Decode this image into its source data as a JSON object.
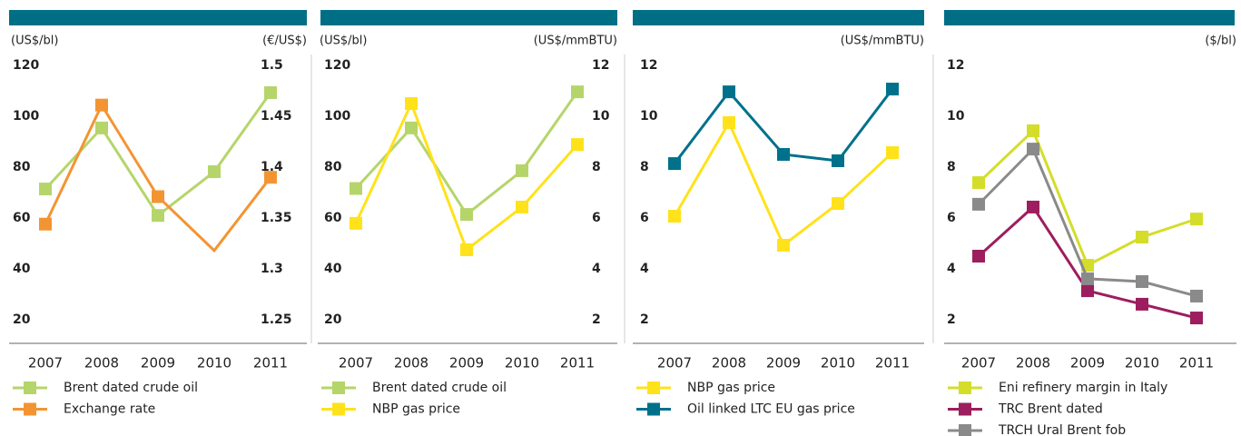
{
  "chart_data": [
    {
      "type": "line",
      "categories": [
        "2007",
        "2008",
        "2009",
        "2010",
        "2011"
      ],
      "ylabel": "(US$/bl)",
      "y2label": "(€/US$)",
      "ylim": [
        10,
        125
      ],
      "yticks": [
        20,
        40,
        60,
        80,
        100,
        120
      ],
      "y2lim": [
        1.225,
        1.5125
      ],
      "y2ticks": [
        1.25,
        1.3,
        1.35,
        1.4,
        1.45,
        1.5
      ],
      "series": [
        {
          "name": "Brent dated crude oil",
          "color": "#b5d56a",
          "values": [
            71.4,
            95.4,
            61,
            78.2,
            109.3
          ],
          "markers": [
            true,
            true,
            true,
            true,
            true
          ]
        },
        {
          "name": "Exchange rate",
          "color": "#f39433",
          "axis": "y2",
          "values": [
            1.344,
            1.461,
            1.371,
            1.318,
            1.39
          ],
          "markers": [
            true,
            true,
            true,
            false,
            true
          ]
        }
      ]
    },
    {
      "type": "line",
      "categories": [
        "2007",
        "2008",
        "2009",
        "2010",
        "2011"
      ],
      "ylabel": "(US$/bl)",
      "y2label": "(US$/mmBTU)",
      "ylim": [
        10,
        125
      ],
      "yticks": [
        20,
        40,
        60,
        80,
        100,
        120
      ],
      "y2lim": [
        1,
        12.5
      ],
      "y2ticks": [
        2,
        4,
        6,
        8,
        10,
        12
      ],
      "series": [
        {
          "name": "Brent dated crude oil",
          "color": "#b5d56a",
          "values": [
            71.6,
            95.4,
            61.4,
            78.6,
            109.6
          ],
          "markers": [
            true,
            true,
            true,
            true,
            true
          ]
        },
        {
          "name": "NBP gas price",
          "color": "#ffe21a",
          "axis": "y2",
          "values": [
            5.79,
            10.5,
            4.75,
            6.43,
            8.89
          ],
          "markers": [
            true,
            true,
            true,
            true,
            true
          ]
        }
      ]
    },
    {
      "type": "line",
      "categories": [
        "2007",
        "2008",
        "2009",
        "2010",
        "2011"
      ],
      "ylabel": "(US$/mmBTU)",
      "ylabel_position": "right",
      "ylim": [
        1,
        12.5
      ],
      "yticks": [
        2,
        4,
        6,
        8,
        10,
        12
      ],
      "series": [
        {
          "name": "NBP gas price",
          "color": "#ffe21a",
          "values": [
            6.07,
            9.75,
            4.93,
            6.57,
            8.57
          ],
          "markers": [
            true,
            true,
            true,
            true,
            true
          ]
        },
        {
          "name": "Oil linked LTC EU gas price",
          "color": "#00718b",
          "values": [
            8.14,
            10.96,
            8.5,
            8.25,
            11.07
          ],
          "markers": [
            true,
            true,
            true,
            true,
            true
          ]
        }
      ]
    },
    {
      "type": "line",
      "categories": [
        "2007",
        "2008",
        "2009",
        "2010",
        "2011"
      ],
      "ylabel": "($/bl)",
      "ylabel_position": "right",
      "ylim": [
        1,
        12.5
      ],
      "yticks": [
        2,
        4,
        6,
        8,
        10,
        12
      ],
      "series": [
        {
          "name": "Eni refinery margin in Italy",
          "color": "#d4dd2a",
          "values": [
            7.39,
            9.43,
            4.14,
            5.25,
            5.96
          ],
          "markers": [
            true,
            true,
            true,
            true,
            true
          ]
        },
        {
          "name": "TRC Brent dated",
          "color": "#9c1e5e",
          "values": [
            4.5,
            6.43,
            3.14,
            2.61,
            2.07
          ],
          "markers": [
            true,
            true,
            true,
            true,
            true
          ]
        },
        {
          "name": "TRCH Ural Brent fob",
          "color": "#8a8a8a",
          "values": [
            6.54,
            8.71,
            3.61,
            3.5,
            2.93
          ],
          "markers": [
            true,
            true,
            true,
            true,
            true
          ]
        }
      ]
    }
  ]
}
